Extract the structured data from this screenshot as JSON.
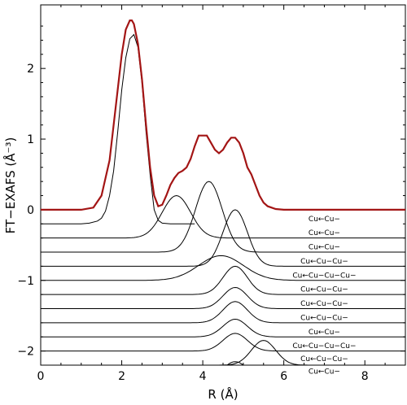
{
  "chart_data": {
    "type": "line",
    "xlabel": "R (Å)",
    "ylabel": "FT−EXAFS (Å⁻³)",
    "xlim": [
      0,
      9
    ],
    "ylim": [
      -2.2,
      2.9
    ],
    "xticks": [
      0,
      2,
      4,
      6,
      8
    ],
    "xtick_labels": [
      "0",
      "2",
      "4",
      "6",
      "8"
    ],
    "yticks": [
      -2,
      -1,
      0,
      1,
      2
    ],
    "ytick_labels": [
      "−2",
      "−1",
      "0",
      "1",
      "2"
    ],
    "grid": false,
    "colors": {
      "total": "#a31515",
      "component": "#000000"
    },
    "total": {
      "x": [
        0.0,
        0.5,
        1.0,
        1.3,
        1.5,
        1.7,
        1.9,
        2.0,
        2.1,
        2.2,
        2.25,
        2.3,
        2.4,
        2.5,
        2.6,
        2.7,
        2.8,
        2.9,
        3.0,
        3.1,
        3.2,
        3.3,
        3.4,
        3.5,
        3.6,
        3.7,
        3.8,
        3.9,
        4.0,
        4.1,
        4.2,
        4.3,
        4.4,
        4.5,
        4.6,
        4.7,
        4.8,
        4.9,
        5.0,
        5.1,
        5.2,
        5.3,
        5.4,
        5.5,
        5.6,
        5.8,
        6.0,
        6.2,
        6.5,
        7.0,
        7.5,
        8.0,
        8.5,
        9.0
      ],
      "y": [
        0.0,
        0.0,
        0.0,
        0.03,
        0.2,
        0.7,
        1.7,
        2.2,
        2.55,
        2.68,
        2.68,
        2.63,
        2.35,
        1.85,
        1.2,
        0.6,
        0.2,
        0.05,
        0.07,
        0.2,
        0.35,
        0.45,
        0.52,
        0.55,
        0.6,
        0.72,
        0.9,
        1.05,
        1.05,
        1.05,
        0.95,
        0.85,
        0.8,
        0.85,
        0.95,
        1.02,
        1.02,
        0.95,
        0.8,
        0.6,
        0.5,
        0.35,
        0.2,
        0.1,
        0.05,
        0.01,
        0.0,
        0.0,
        0.0,
        0.0,
        0.0,
        0.0,
        0.0,
        0.0
      ]
    },
    "first_shell": {
      "x": [
        0.0,
        0.5,
        1.0,
        1.2,
        1.4,
        1.5,
        1.6,
        1.7,
        1.8,
        1.9,
        2.0,
        2.1,
        2.2,
        2.3,
        2.4,
        2.5,
        2.6,
        2.7,
        2.8,
        2.9,
        3.0,
        3.2,
        3.4,
        3.6,
        3.8
      ],
      "y": [
        -0.2,
        -0.2,
        -0.2,
        -0.19,
        -0.16,
        -0.12,
        -0.02,
        0.2,
        0.55,
        1.1,
        1.7,
        2.15,
        2.42,
        2.48,
        2.3,
        1.8,
        1.1,
        0.5,
        0.0,
        -0.15,
        -0.19,
        -0.2,
        -0.2,
        -0.2,
        -0.2
      ]
    },
    "components": [
      {
        "baseline": -0.4,
        "center": 3.35,
        "height": 0.6,
        "sigma": 0.35
      },
      {
        "baseline": -0.6,
        "center": 4.15,
        "height": 1.0,
        "sigma": 0.33
      },
      {
        "baseline": -0.8,
        "center": 4.8,
        "height": 0.8,
        "sigma": 0.3
      },
      {
        "baseline": -1.0,
        "center": 4.45,
        "height": 0.35,
        "sigma": 0.55
      },
      {
        "baseline": -1.2,
        "center": 4.8,
        "height": 0.4,
        "sigma": 0.3
      },
      {
        "baseline": -1.4,
        "center": 4.8,
        "height": 0.3,
        "sigma": 0.3
      },
      {
        "baseline": -1.6,
        "center": 4.8,
        "height": 0.3,
        "sigma": 0.3
      },
      {
        "baseline": -1.8,
        "center": 4.8,
        "height": 0.25,
        "sigma": 0.3
      },
      {
        "baseline": -2.0,
        "center": 4.8,
        "height": 0.25,
        "sigma": 0.3
      },
      {
        "baseline": -2.2,
        "center": 5.5,
        "height": 0.35,
        "sigma": 0.3
      },
      {
        "baseline": -2.4,
        "center": 4.8,
        "height": 0.25,
        "sigma": 0.3
      }
    ],
    "annotations": [
      {
        "text": "Cu←Cu−",
        "x": 7.0,
        "y": -0.16
      },
      {
        "text": "Cu←Cu−",
        "x": 7.0,
        "y": -0.36
      },
      {
        "text": "Cu←Cu−",
        "x": 7.0,
        "y": -0.56
      },
      {
        "text": "Cu←Cu−Cu−",
        "x": 7.0,
        "y": -0.76
      },
      {
        "text": "Cu←Cu−Cu−Cu−",
        "x": 7.0,
        "y": -0.96
      },
      {
        "text": "Cu←Cu−Cu−",
        "x": 7.0,
        "y": -1.16
      },
      {
        "text": "Cu←Cu−Cu−",
        "x": 7.0,
        "y": -1.36
      },
      {
        "text": "Cu←Cu−Cu−",
        "x": 7.0,
        "y": -1.56
      },
      {
        "text": "Cu←Cu−",
        "x": 7.0,
        "y": -1.76
      },
      {
        "text": "Cu←Cu−Cu−Cu−",
        "x": 7.0,
        "y": -1.96
      },
      {
        "text": "Cu←Cu−Cu−",
        "x": 7.0,
        "y": -2.14
      },
      {
        "text": "Cu←Cu−",
        "x": 7.0,
        "y": -2.32
      }
    ]
  }
}
